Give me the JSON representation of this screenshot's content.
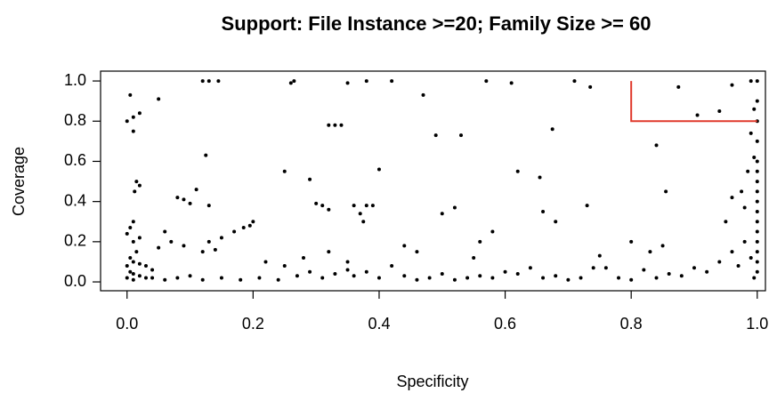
{
  "chart_data": {
    "type": "scatter",
    "title": "Support: File Instance >=20; Family Size >= 60",
    "xlabel": "Specificity",
    "ylabel": "Coverage",
    "color": "#000000",
    "xlim": [
      -0.042,
      1.013
    ],
    "ylim": [
      -0.044,
      1.049
    ],
    "xticks": [
      {
        "value": 0,
        "label": "0.0"
      },
      0.2,
      0.4,
      0.6,
      0.8,
      {
        "value": 1,
        "label": "1.0"
      }
    ],
    "yticks": [
      {
        "value": 0,
        "label": "0.0"
      },
      0.2,
      0.4,
      0.6,
      0.8,
      {
        "value": 1,
        "label": "1.0"
      }
    ],
    "threshold": {
      "x": [
        0.8,
        1.0
      ],
      "y": [
        0.8,
        1.0
      ],
      "color": "#e0392b"
    },
    "x": [
      0.12,
      0.13,
      0.145,
      0.26,
      0.265,
      0.35,
      0.38,
      0.42,
      0.57,
      0.61,
      0.71,
      0.735,
      0.96,
      0.99,
      1.0,
      0.005,
      0.05,
      0.01,
      0.0,
      0.02,
      0.01,
      0.47,
      0.32,
      0.33,
      0.34,
      0.125,
      0.49,
      0.53,
      0.675,
      0.875,
      0.905,
      0.94,
      0.84,
      0.995,
      0.99,
      0.62,
      0.25,
      0.4,
      0.655,
      0.29,
      0.855,
      0.985,
      0.995,
      0.015,
      0.012,
      0.02,
      0.11,
      0.08,
      0.09,
      0.1,
      0.13,
      0.3,
      0.31,
      0.32,
      0.36,
      0.38,
      0.39,
      0.37,
      0.375,
      0.5,
      0.52,
      0.68,
      0.73,
      0.66,
      0.96,
      0.975,
      0.98,
      0.95,
      0.2,
      0.195,
      0.185,
      0.17,
      0.15,
      0.13,
      0.12,
      0.14,
      0.06,
      0.07,
      0.09,
      0.05,
      0.01,
      0.005,
      0.02,
      0.01,
      0.0,
      0.015,
      0.005,
      0.01,
      0.02,
      0.03,
      0.04,
      0.0,
      0.005,
      0.01,
      0.02,
      0.03,
      0.0,
      0.01,
      0.04,
      0.06,
      0.08,
      0.1,
      0.12,
      0.15,
      0.18,
      0.21,
      0.24,
      0.27,
      0.29,
      0.31,
      0.33,
      0.35,
      0.36,
      0.38,
      0.4,
      0.42,
      0.44,
      0.46,
      0.48,
      0.5,
      0.52,
      0.54,
      0.56,
      0.58,
      0.6,
      0.62,
      0.64,
      0.66,
      0.68,
      0.7,
      0.72,
      0.74,
      0.76,
      0.78,
      0.8,
      0.82,
      0.84,
      0.86,
      0.88,
      0.9,
      0.92,
      0.94,
      0.96,
      0.97,
      0.98,
      0.99,
      1.0,
      1.0,
      1.0,
      1.0,
      1.0,
      1.0,
      1.0,
      1.0,
      1.0,
      1.0,
      1.0,
      1.0,
      1.0,
      1.0,
      1.0,
      0.995,
      0.44,
      0.46,
      0.56,
      0.58,
      0.75,
      0.8,
      0.83,
      0.85,
      0.55,
      0.22,
      0.25,
      0.28,
      0.32,
      0.35
    ],
    "values": [
      1.0,
      1.0,
      1.0,
      0.99,
      1.0,
      0.99,
      1.0,
      1.0,
      1.0,
      0.99,
      1.0,
      0.97,
      0.98,
      1.0,
      1.0,
      0.93,
      0.91,
      0.82,
      0.8,
      0.84,
      0.75,
      0.93,
      0.78,
      0.78,
      0.78,
      0.63,
      0.73,
      0.73,
      0.76,
      0.97,
      0.83,
      0.85,
      0.68,
      0.86,
      0.74,
      0.55,
      0.55,
      0.56,
      0.52,
      0.51,
      0.45,
      0.55,
      0.62,
      0.5,
      0.45,
      0.48,
      0.46,
      0.42,
      0.41,
      0.39,
      0.38,
      0.39,
      0.38,
      0.36,
      0.38,
      0.38,
      0.38,
      0.34,
      0.3,
      0.34,
      0.37,
      0.3,
      0.38,
      0.35,
      0.42,
      0.45,
      0.37,
      0.3,
      0.3,
      0.28,
      0.27,
      0.25,
      0.22,
      0.2,
      0.15,
      0.16,
      0.25,
      0.2,
      0.18,
      0.17,
      0.3,
      0.27,
      0.22,
      0.2,
      0.24,
      0.15,
      0.12,
      0.1,
      0.09,
      0.08,
      0.06,
      0.08,
      0.05,
      0.04,
      0.03,
      0.02,
      0.02,
      0.01,
      0.02,
      0.01,
      0.02,
      0.03,
      0.01,
      0.02,
      0.01,
      0.02,
      0.01,
      0.03,
      0.05,
      0.02,
      0.04,
      0.06,
      0.03,
      0.05,
      0.02,
      0.08,
      0.03,
      0.01,
      0.02,
      0.04,
      0.01,
      0.02,
      0.03,
      0.02,
      0.05,
      0.04,
      0.07,
      0.02,
      0.03,
      0.01,
      0.02,
      0.07,
      0.07,
      0.02,
      0.01,
      0.06,
      0.02,
      0.04,
      0.03,
      0.07,
      0.05,
      0.1,
      0.15,
      0.08,
      0.2,
      0.12,
      0.05,
      0.1,
      0.15,
      0.2,
      0.25,
      0.3,
      0.35,
      0.4,
      0.45,
      0.5,
      0.55,
      0.6,
      0.7,
      0.8,
      0.9,
      0.02,
      0.18,
      0.15,
      0.2,
      0.25,
      0.13,
      0.2,
      0.15,
      0.18,
      0.12,
      0.1,
      0.08,
      0.12,
      0.15,
      0.1
    ]
  }
}
